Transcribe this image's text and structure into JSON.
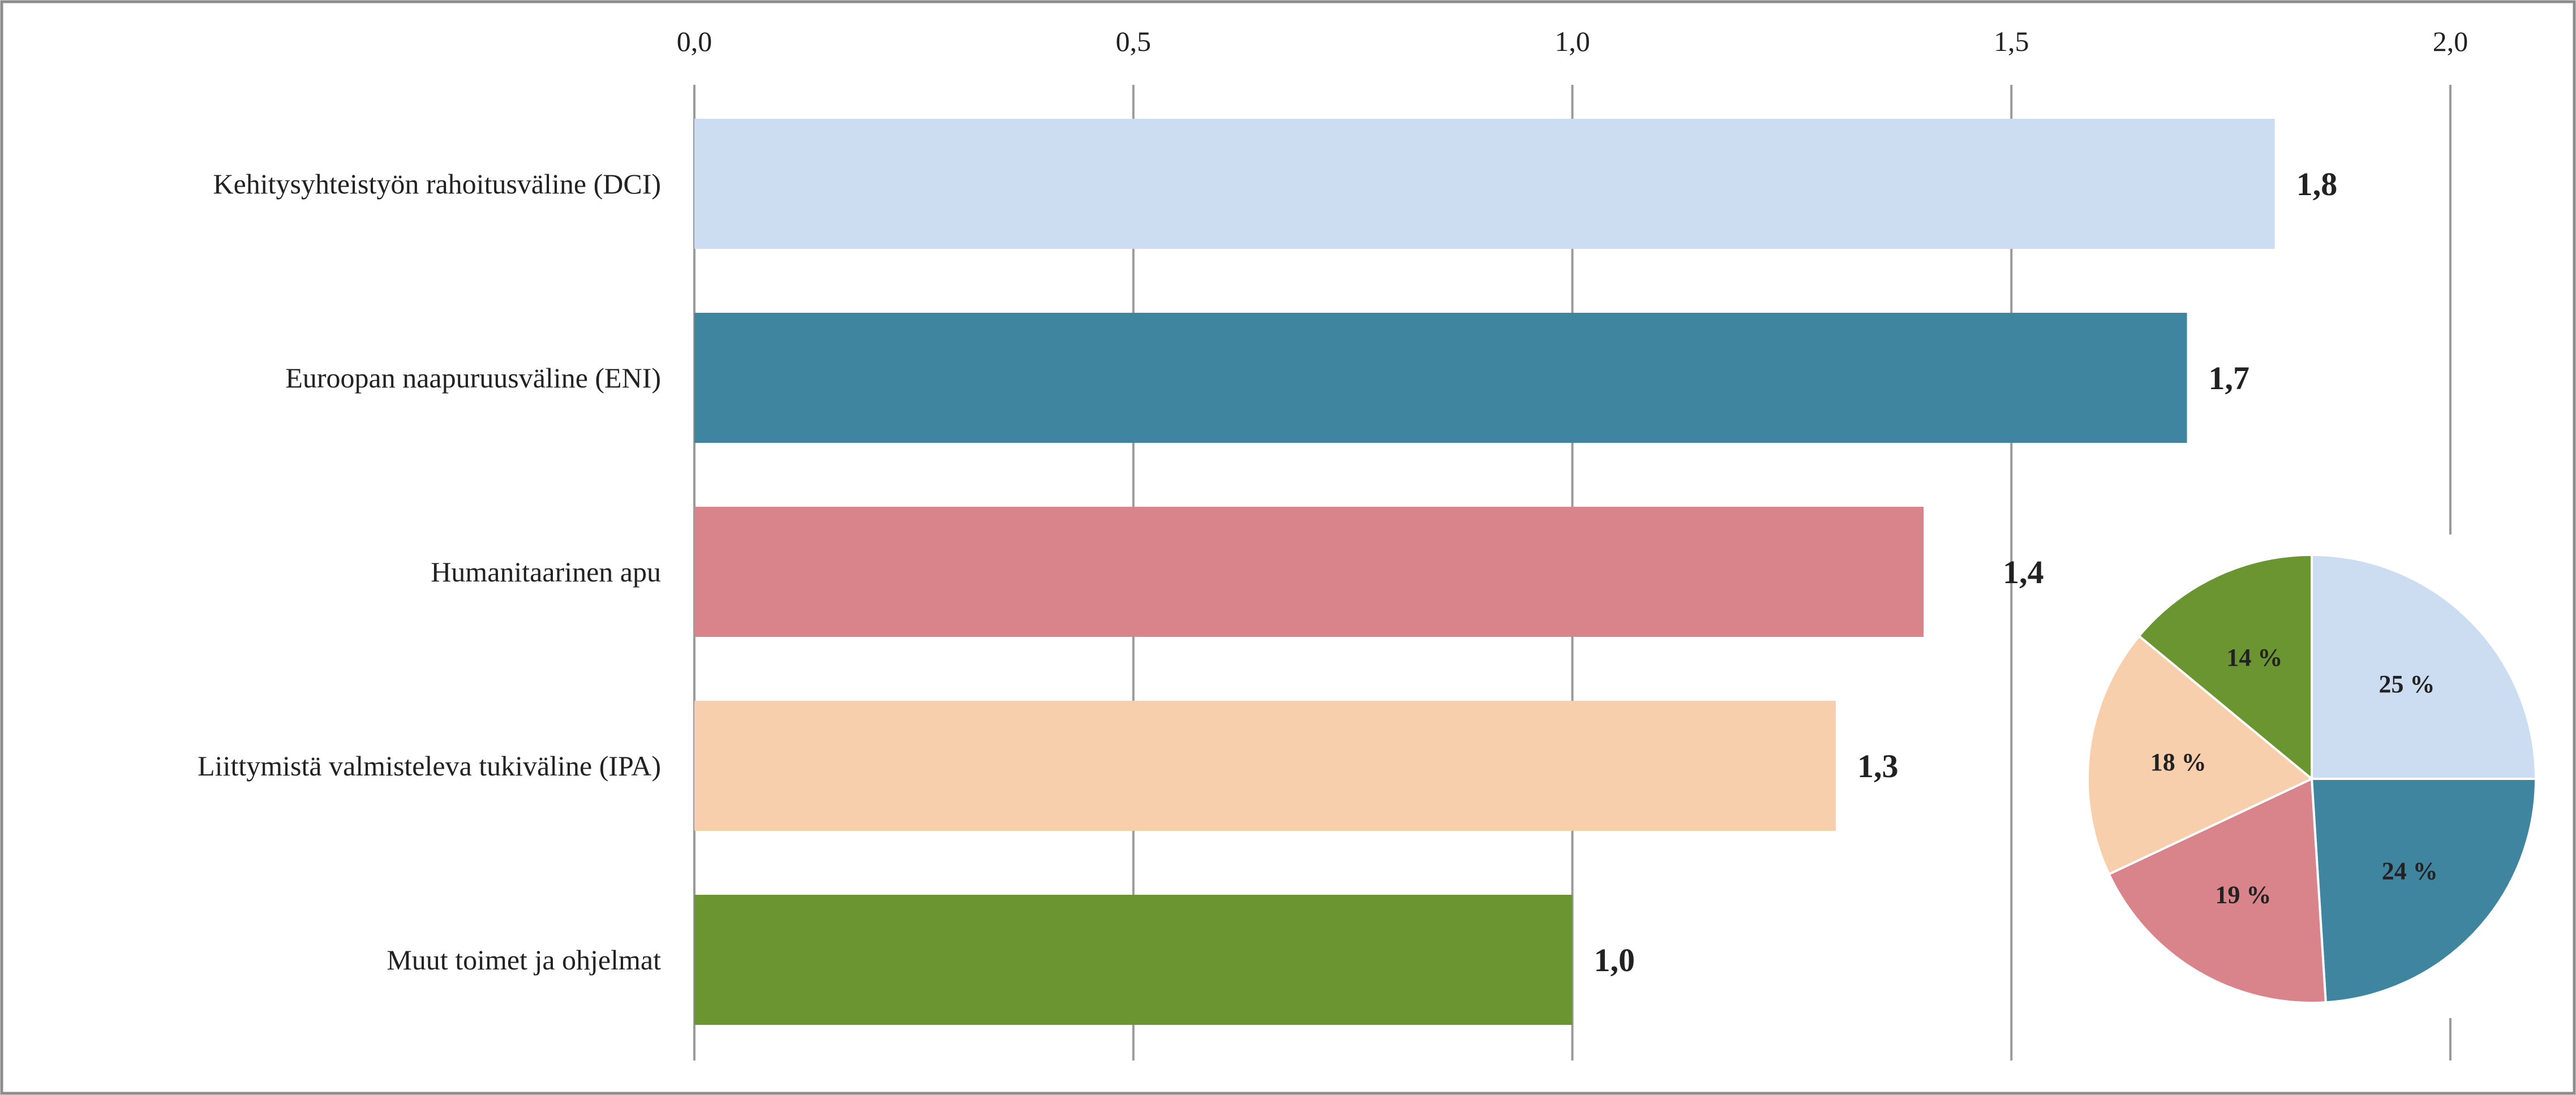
{
  "chart_data": [
    {
      "type": "bar",
      "orientation": "horizontal",
      "categories": [
        "Kehitysyhteistyön rahoitusväline (DCI)",
        "Euroopan naapuruusväline (ENI)",
        "Humanitaarinen apu",
        "Liittymistä valmisteleva tukiväline (IPA)",
        "Muut toimet ja ohjelmat"
      ],
      "values": [
        1.8,
        1.7,
        1.4,
        1.3,
        1.0
      ],
      "value_labels": [
        "1,8",
        "1,7",
        "1,4",
        "1,3",
        "1,0"
      ],
      "colors": [
        "#ccddf1",
        "#3f859f",
        "#d9838b",
        "#f8cfac",
        "#6a9531"
      ],
      "xlim": [
        0,
        2.0
      ],
      "x_ticks": [
        0,
        0.5,
        1.0,
        1.5,
        2.0
      ],
      "x_tick_labels": [
        "0,0",
        "0,5",
        "1,0",
        "1,5",
        "2,0"
      ],
      "axis_position": "top",
      "grid": "vertical"
    },
    {
      "type": "pie",
      "slices": [
        {
          "label": "25 %",
          "value": 25,
          "color": "#ccddf1"
        },
        {
          "label": "24 %",
          "value": 24,
          "color": "#3f859f"
        },
        {
          "label": "19 %",
          "value": 19,
          "color": "#d9838b"
        },
        {
          "label": "18 %",
          "value": 18,
          "color": "#f8cfac"
        },
        {
          "label": "14 %",
          "value": 14,
          "color": "#6a9531"
        }
      ],
      "start": "12 o'clock",
      "direction": "clockwise"
    }
  ]
}
